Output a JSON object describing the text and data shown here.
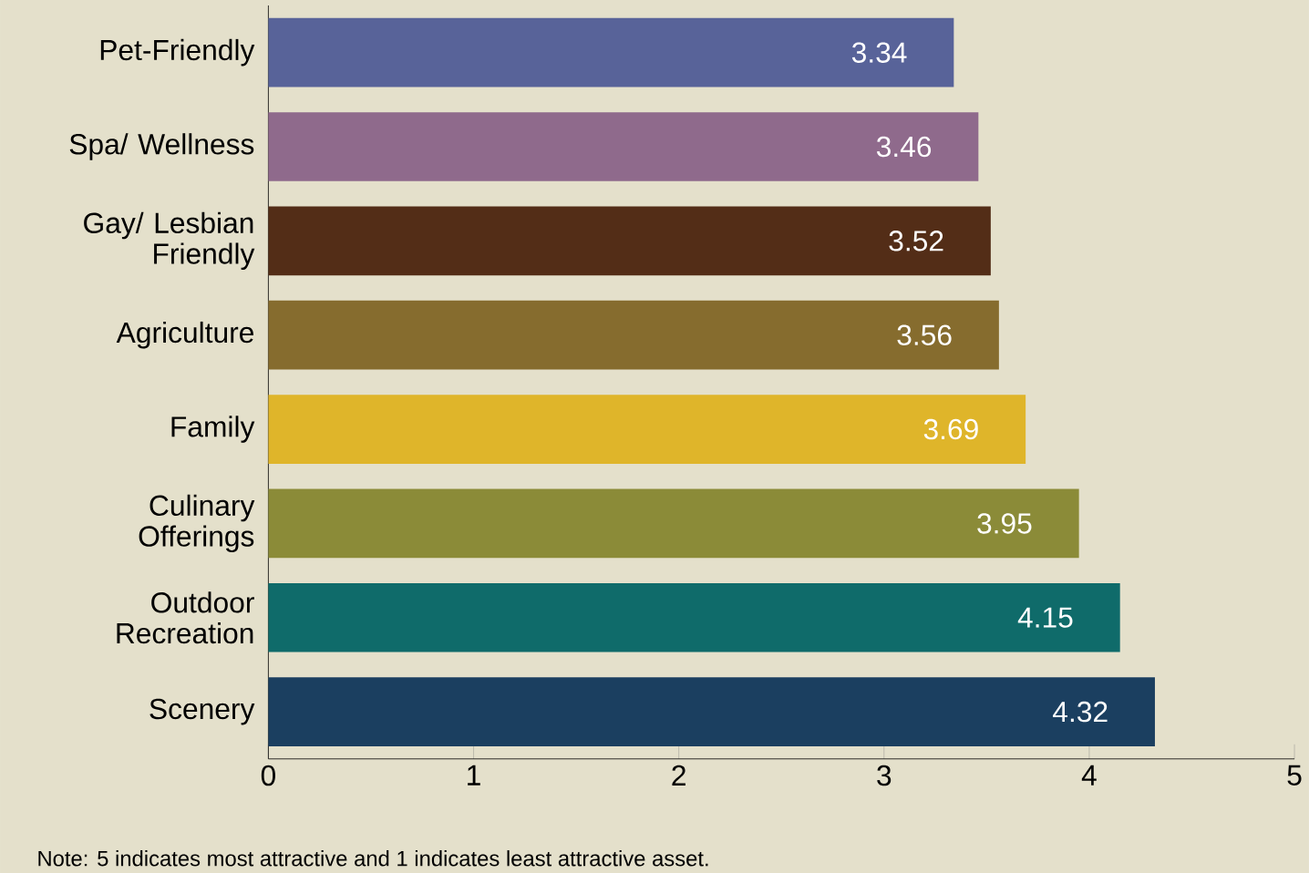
{
  "chart_data": {
    "type": "bar",
    "orientation": "horizontal",
    "categories": [
      "Pet-Friendly",
      "Spa/ Wellness",
      "Gay/ Lesbian Friendly",
      "Agriculture",
      "Family",
      "Culinary Offerings",
      "Outdoor Recreation",
      "Scenery"
    ],
    "values": [
      3.34,
      3.46,
      3.52,
      3.56,
      3.69,
      3.95,
      4.15,
      4.32
    ],
    "colors": [
      "#586399",
      "#8f6a8c",
      "#532d17",
      "#866c2e",
      "#dfb52a",
      "#8b8b38",
      "#0f6b6a",
      "#1b3f60"
    ],
    "xlim": [
      0,
      5
    ],
    "xticks": [
      0,
      1,
      2,
      3,
      4,
      5
    ],
    "data_labels": true,
    "grid": false,
    "annotations": [
      "Note: 5 indicates most attractive and 1 indicates least attractive asset."
    ]
  }
}
